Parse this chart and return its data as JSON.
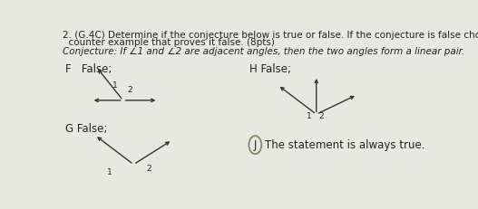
{
  "background_color": "#e8e8e2",
  "title_line1": "2. (G.4C) Determine if the conjecture below is true or false. If the conjecture is false choose the",
  "title_line2": "  counter example that proves it false. (8pts)",
  "conjecture": "Conjecture: If ∠1 and ∠2 are adjacent angles, then the two angles form a linear pair.",
  "option_F_label": "F   False;",
  "option_G_label": "G False;",
  "option_H_label": "H False;",
  "option_J_label": "The statement is always true.",
  "text_color": "#222222",
  "font_size_main": 7.5,
  "font_size_label": 8.5,
  "font_size_diagram": 6.5,
  "circle_color": "#888866",
  "arrow_color": "#333333",
  "lw": 1.0
}
